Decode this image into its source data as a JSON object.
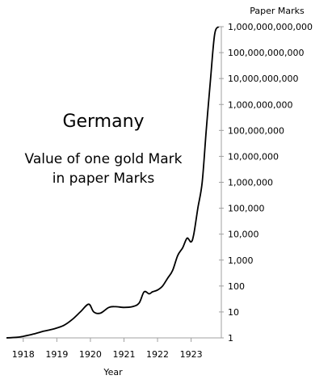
{
  "chart_data": {
    "type": "line",
    "title": "Germany",
    "subtitle": [
      "Value of one gold Mark",
      "in paper Marks"
    ],
    "xlabel": "Year",
    "ylabel": "Paper Marks",
    "y_scale": "log",
    "ylim": [
      1,
      1000000000000
    ],
    "xlim": [
      1917.5,
      1923.9
    ],
    "x_ticks": [
      1918,
      1919,
      1920,
      1921,
      1922,
      1923
    ],
    "x_tick_labels": [
      "1918",
      "1919",
      "1920",
      "1921",
      "1922",
      "1923"
    ],
    "y_ticks": [
      1,
      10,
      100,
      1000,
      10000,
      100000,
      1000000,
      10000000,
      100000000,
      1000000000,
      10000000000,
      100000000000,
      1000000000000
    ],
    "y_tick_labels": [
      "1",
      "10",
      "100",
      "1,000",
      "10,000",
      "100,000",
      "1,000,000",
      "10,000,000",
      "100,000,000",
      "1,000,000,000",
      "10,000,000,000",
      "100,000,000,000",
      "1,000,000,000,000"
    ],
    "grid": false,
    "y_axis_side": "right",
    "series": [
      {
        "color": "#000000",
        "x": [
          1917.5,
          1917.8,
          1918.0,
          1918.3,
          1918.6,
          1918.9,
          1919.2,
          1919.45,
          1919.7,
          1919.95,
          1920.1,
          1920.3,
          1920.55,
          1920.75,
          1921.0,
          1921.25,
          1921.45,
          1921.6,
          1921.75,
          1921.85,
          1922.0,
          1922.15,
          1922.3,
          1922.45,
          1922.6,
          1922.75,
          1922.88,
          1923.0,
          1923.08,
          1923.2,
          1923.33,
          1923.45,
          1923.58,
          1923.7,
          1923.82
        ],
        "y": [
          1.0,
          1.05,
          1.15,
          1.4,
          1.8,
          2.2,
          3.0,
          5.0,
          10.0,
          20.0,
          10.0,
          9.0,
          15.0,
          16.0,
          15.0,
          16.0,
          22.0,
          60.0,
          50.0,
          60.0,
          70.0,
          100.0,
          200.0,
          400.0,
          1500.0,
          3000.0,
          7000.0,
          5000.0,
          10000.0,
          100000.0,
          1000000.0,
          100000000.0,
          10000000000.0,
          500000000000.0,
          1000000000000.0
        ]
      }
    ]
  }
}
